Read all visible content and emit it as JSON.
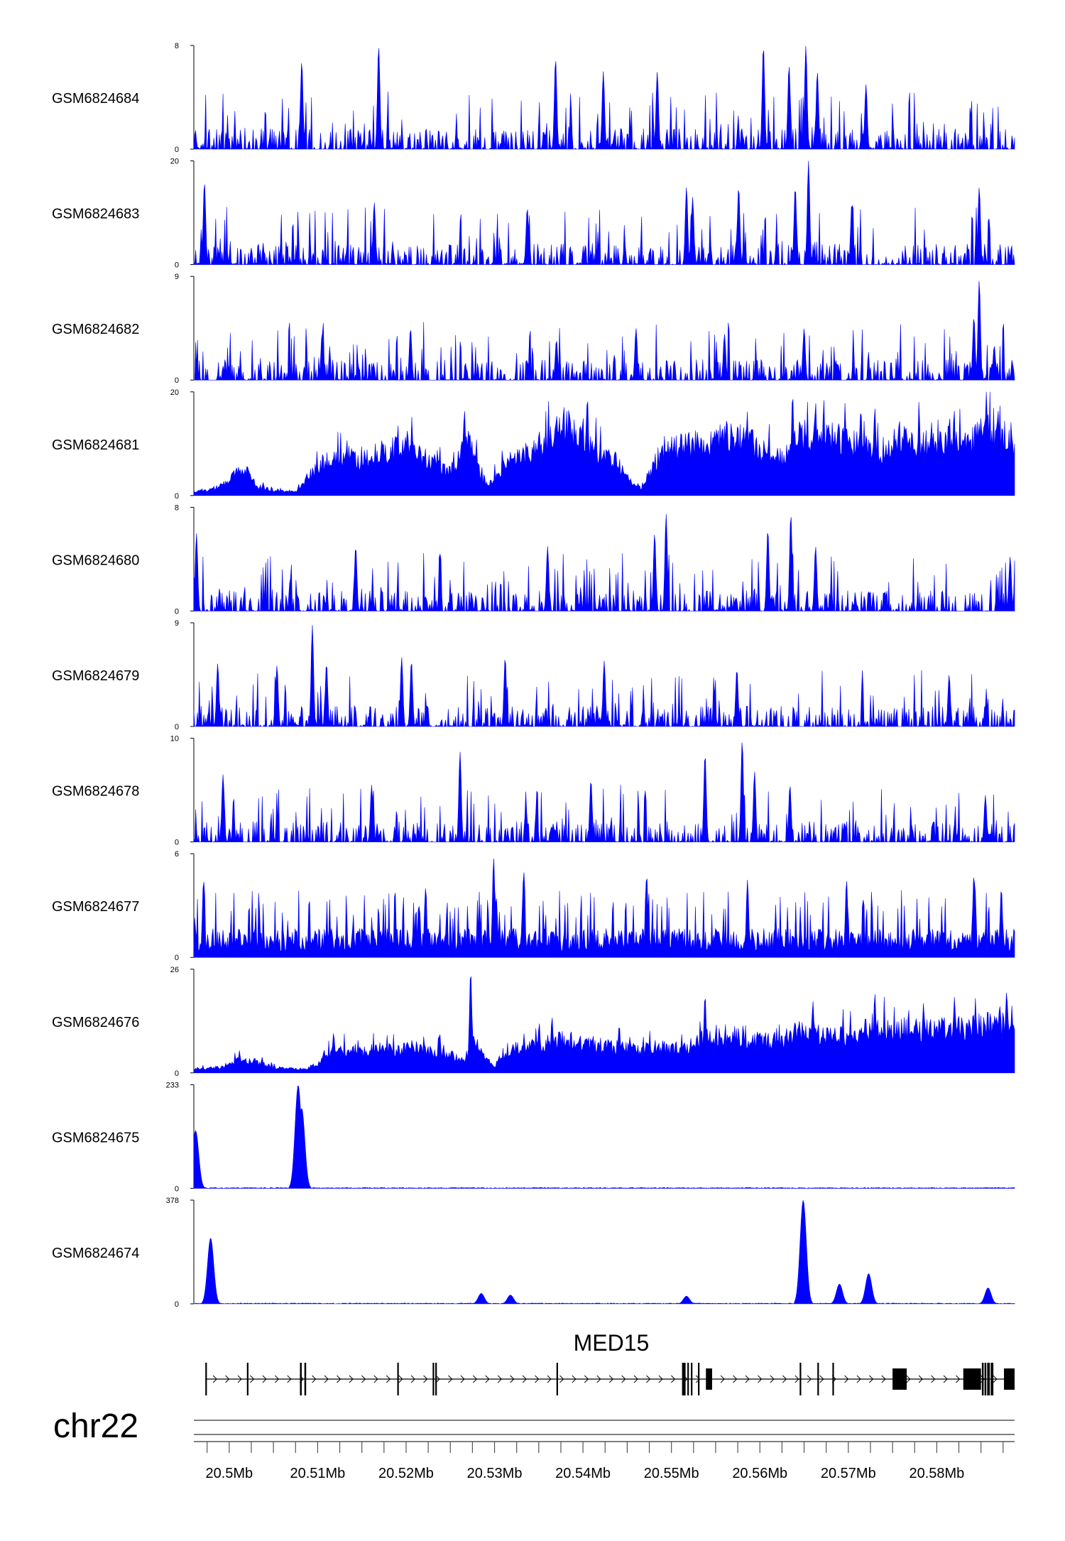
{
  "chart_data": {
    "type": "area",
    "chromosome": "chr22",
    "x_range_bp": [
      20496000,
      20588800
    ],
    "x_ticks_labeled": [
      {
        "pos": 20500000,
        "label": "20.5Mb"
      },
      {
        "pos": 20510000,
        "label": "20.51Mb"
      },
      {
        "pos": 20520000,
        "label": "20.52Mb"
      },
      {
        "pos": 20530000,
        "label": "20.53Mb"
      },
      {
        "pos": 20540000,
        "label": "20.54Mb"
      },
      {
        "pos": 20550000,
        "label": "20.55Mb"
      },
      {
        "pos": 20560000,
        "label": "20.56Mb"
      },
      {
        "pos": 20570000,
        "label": "20.57Mb"
      },
      {
        "pos": 20580000,
        "label": "20.58Mb"
      }
    ],
    "minor_tick_step_bp": 2500,
    "track_color": "#0000ff",
    "tracks": [
      {
        "name": "GSM6824684",
        "ymax": 8,
        "ymax_label": "8",
        "ymin_label": "0",
        "style": "spiky",
        "peaks": [
          [
            20508200,
            6.8
          ],
          [
            20516900,
            8.0
          ],
          [
            20536900,
            7.0
          ],
          [
            20542300,
            6.0
          ],
          [
            20548400,
            6.0
          ],
          [
            20560400,
            8.0
          ],
          [
            20563300,
            6.5
          ],
          [
            20565200,
            8.0
          ],
          [
            20566500,
            6.0
          ],
          [
            20572000,
            5.0
          ]
        ]
      },
      {
        "name": "GSM6824683",
        "ymax": 20,
        "ymax_label": "20",
        "ymin_label": "0",
        "style": "spiky",
        "peaks": [
          [
            20497200,
            16.0
          ],
          [
            20516400,
            12.0
          ],
          [
            20533700,
            11.0
          ],
          [
            20551700,
            15.0
          ],
          [
            20552400,
            13.0
          ],
          [
            20557600,
            15.0
          ],
          [
            20564000,
            15.0
          ],
          [
            20565500,
            20.0
          ],
          [
            20570400,
            12.0
          ],
          [
            20584800,
            15.0
          ]
        ]
      },
      {
        "name": "GSM6824682",
        "ymax": 9,
        "ymax_label": "9",
        "ymin_label": "0",
        "style": "spiky",
        "peaks": [
          [
            20510500,
            4.0
          ],
          [
            20520500,
            4.5
          ],
          [
            20537000,
            3.5
          ],
          [
            20546000,
            4.5
          ],
          [
            20556000,
            4.0
          ],
          [
            20565000,
            4.5
          ],
          [
            20584800,
            8.7
          ],
          [
            20584200,
            5.5
          ],
          [
            20586500,
            3.0
          ]
        ]
      },
      {
        "name": "GSM6824681",
        "ymax": 20,
        "ymax_label": "20",
        "ymin_label": "0",
        "style": "broad",
        "profile": [
          [
            20496000,
            0.8
          ],
          [
            20497500,
            1.0
          ],
          [
            20499000,
            2.0
          ],
          [
            20501000,
            4.5
          ],
          [
            20502000,
            6.5
          ],
          [
            20503000,
            2.0
          ],
          [
            20505000,
            1.0
          ],
          [
            20507500,
            0.8
          ],
          [
            20509000,
            4.0
          ],
          [
            20511000,
            7.0
          ],
          [
            20513500,
            8.0
          ],
          [
            20515000,
            7.0
          ],
          [
            20517000,
            9.0
          ],
          [
            20519500,
            10.0
          ],
          [
            20521000,
            9.0
          ],
          [
            20523500,
            6.5
          ],
          [
            20524500,
            5.0
          ],
          [
            20525500,
            6.0
          ],
          [
            20526800,
            13.0
          ],
          [
            20527800,
            8.0
          ],
          [
            20528500,
            3.5
          ],
          [
            20529500,
            2.5
          ],
          [
            20531000,
            6.0
          ],
          [
            20532500,
            8.0
          ],
          [
            20534500,
            9.5
          ],
          [
            20536000,
            12.0
          ],
          [
            20538000,
            14.0
          ],
          [
            20540000,
            13.0
          ],
          [
            20541500,
            9.0
          ],
          [
            20543500,
            8.0
          ],
          [
            20544500,
            5.0
          ],
          [
            20545500,
            3.0
          ],
          [
            20546500,
            1.5
          ],
          [
            20547500,
            5.0
          ],
          [
            20549000,
            9.0
          ],
          [
            20551000,
            10.0
          ],
          [
            20553000,
            11.0
          ],
          [
            20555000,
            12.0
          ],
          [
            20557000,
            12.0
          ],
          [
            20559000,
            11.0
          ],
          [
            20561000,
            9.0
          ],
          [
            20563000,
            7.5
          ],
          [
            20564000,
            12.0
          ],
          [
            20566000,
            13.0
          ],
          [
            20568000,
            12.5
          ],
          [
            20570000,
            11.0
          ],
          [
            20572000,
            10.5
          ],
          [
            20574000,
            9.5
          ],
          [
            20576000,
            12.5
          ],
          [
            20578000,
            11.0
          ],
          [
            20580000,
            10.0
          ],
          [
            20582000,
            12.0
          ],
          [
            20584000,
            11.0
          ],
          [
            20586000,
            14.0
          ],
          [
            20588800,
            11.0
          ]
        ],
        "peaks": [
          [
            20500500,
            5.0
          ],
          [
            20514000,
            9.0
          ],
          [
            20519000,
            11.0
          ],
          [
            20526600,
            16.5
          ],
          [
            20535000,
            11.0
          ],
          [
            20540500,
            19.0
          ],
          [
            20557500,
            14.0
          ],
          [
            20563700,
            19.5
          ],
          [
            20566300,
            18.0
          ],
          [
            20573000,
            17.0
          ],
          [
            20578000,
            16.0
          ],
          [
            20585000,
            15.0
          ]
        ]
      },
      {
        "name": "GSM6824680",
        "ymax": 8,
        "ymax_label": "8",
        "ymin_label": "0",
        "style": "spiky",
        "peaks": [
          [
            20496300,
            6.0
          ],
          [
            20514300,
            5.0
          ],
          [
            20536000,
            5.0
          ],
          [
            20548100,
            6.0
          ],
          [
            20549400,
            7.5
          ],
          [
            20560900,
            6.3
          ],
          [
            20563500,
            7.5
          ],
          [
            20566300,
            5.0
          ],
          [
            20588300,
            4.2
          ]
        ]
      },
      {
        "name": "GSM6824679",
        "ymax": 9,
        "ymax_label": "9",
        "ymin_label": "0",
        "style": "spiky",
        "peaks": [
          [
            20498700,
            5.5
          ],
          [
            20505400,
            5.3
          ],
          [
            20509400,
            8.8
          ],
          [
            20511000,
            5.5
          ],
          [
            20519500,
            6.0
          ],
          [
            20520600,
            5.7
          ],
          [
            20531200,
            6.0
          ],
          [
            20542400,
            5.7
          ],
          [
            20557400,
            5.0
          ],
          [
            20581400,
            4.5
          ]
        ]
      },
      {
        "name": "GSM6824678",
        "ymax": 10,
        "ymax_label": "10",
        "ymin_label": "0",
        "style": "spiky",
        "peaks": [
          [
            20499300,
            6.5
          ],
          [
            20516100,
            5.5
          ],
          [
            20526100,
            8.7
          ],
          [
            20540900,
            6.0
          ],
          [
            20553800,
            8.5
          ],
          [
            20558000,
            9.8
          ],
          [
            20559400,
            6.8
          ],
          [
            20563400,
            5.5
          ],
          [
            20585500,
            4.5
          ]
        ]
      },
      {
        "name": "GSM6824677",
        "ymax": 6,
        "ymax_label": "6",
        "ymin_label": "0",
        "style": "dense",
        "peaks": [
          [
            20497100,
            4.5
          ],
          [
            20522200,
            4.0
          ],
          [
            20529900,
            5.8
          ],
          [
            20530200,
            3.5
          ],
          [
            20533300,
            5.0
          ],
          [
            20547200,
            4.8
          ],
          [
            20558600,
            4.5
          ],
          [
            20569800,
            4.5
          ],
          [
            20584200,
            4.8
          ],
          [
            20587300,
            4.0
          ]
        ]
      },
      {
        "name": "GSM6824676",
        "ymax": 26,
        "ymax_label": "26",
        "ymin_label": "0",
        "style": "broad",
        "profile": [
          [
            20496000,
            1.0
          ],
          [
            20499000,
            1.5
          ],
          [
            20501000,
            3.5
          ],
          [
            20503000,
            3.0
          ],
          [
            20505000,
            1.5
          ],
          [
            20508500,
            1.0
          ],
          [
            20510000,
            2.5
          ],
          [
            20511000,
            5.0
          ],
          [
            20513000,
            6.0
          ],
          [
            20515000,
            5.5
          ],
          [
            20517000,
            6.5
          ],
          [
            20519000,
            6.0
          ],
          [
            20521000,
            7.0
          ],
          [
            20523000,
            5.5
          ],
          [
            20525000,
            5.0
          ],
          [
            20526500,
            3.0
          ],
          [
            20527500,
            9.0
          ],
          [
            20529000,
            4.0
          ],
          [
            20530000,
            2.0
          ],
          [
            20532000,
            6.5
          ],
          [
            20534000,
            7.0
          ],
          [
            20536000,
            8.0
          ],
          [
            20538000,
            9.0
          ],
          [
            20540000,
            8.0
          ],
          [
            20542000,
            7.5
          ],
          [
            20544000,
            7.0
          ],
          [
            20546000,
            6.5
          ],
          [
            20548000,
            7.0
          ],
          [
            20550000,
            6.5
          ],
          [
            20552000,
            7.0
          ],
          [
            20554000,
            10.0
          ],
          [
            20556000,
            10.5
          ],
          [
            20558000,
            9.5
          ],
          [
            20560000,
            9.0
          ],
          [
            20562000,
            8.0
          ],
          [
            20564000,
            11.0
          ],
          [
            20566000,
            10.5
          ],
          [
            20568000,
            10.0
          ],
          [
            20570000,
            10.0
          ],
          [
            20572000,
            11.5
          ],
          [
            20574000,
            12.0
          ],
          [
            20576000,
            12.0
          ],
          [
            20578000,
            11.5
          ],
          [
            20580000,
            12.0
          ],
          [
            20582000,
            12.0
          ],
          [
            20584000,
            12.5
          ],
          [
            20586000,
            13.0
          ],
          [
            20588800,
            12.5
          ]
        ],
        "peaks": [
          [
            20511800,
            10.0
          ],
          [
            20523800,
            10.0
          ],
          [
            20527300,
            25.5
          ],
          [
            20536500,
            14.0
          ],
          [
            20544100,
            12.0
          ],
          [
            20553800,
            19.5
          ],
          [
            20566000,
            18.0
          ],
          [
            20573000,
            20.0
          ],
          [
            20578500,
            17.5
          ],
          [
            20582000,
            19.0
          ],
          [
            20587900,
            20.5
          ]
        ]
      },
      {
        "name": "GSM6824675",
        "ymax": 233,
        "ymax_label": "233",
        "ymin_label": "0",
        "style": "flat",
        "peaks": [
          [
            20496200,
            130.0
          ],
          [
            20507800,
            232.0
          ],
          [
            20508200,
            180.0
          ]
        ],
        "baseline": 2.0
      },
      {
        "name": "GSM6824674",
        "ymax": 378,
        "ymax_label": "378",
        "ymin_label": "0",
        "style": "flat",
        "peaks": [
          [
            20497900,
            240.0
          ],
          [
            20528500,
            38.0
          ],
          [
            20531800,
            32.0
          ],
          [
            20551700,
            28.0
          ],
          [
            20564900,
            378.0
          ],
          [
            20569000,
            72.0
          ],
          [
            20572300,
            110.0
          ],
          [
            20585800,
            58.0
          ]
        ],
        "baseline": 3.0
      }
    ],
    "gene": {
      "name": "MED15",
      "strand": "+",
      "start": 20497300,
      "end": 20588800,
      "exons": [
        [
          20497300,
          20497400
        ],
        [
          20502000,
          20502100
        ],
        [
          20508000,
          20508200
        ],
        [
          20508500,
          20508700
        ],
        [
          20519000,
          20519100
        ],
        [
          20523000,
          20523100
        ],
        [
          20523300,
          20523400
        ],
        [
          20537000,
          20537100
        ],
        [
          20551200,
          20551600
        ],
        [
          20551800,
          20551900
        ],
        [
          20552200,
          20552300
        ],
        [
          20553000,
          20553100
        ],
        [
          20553900,
          20554600
        ],
        [
          20564500,
          20564650
        ],
        [
          20566500,
          20566650
        ],
        [
          20568200,
          20568350
        ],
        [
          20575000,
          20576600
        ],
        [
          20583000,
          20585000
        ],
        [
          20585100,
          20585300
        ],
        [
          20585400,
          20585600
        ],
        [
          20585700,
          20586000
        ],
        [
          20586100,
          20586400
        ],
        [
          20587600,
          20588800
        ]
      ]
    }
  }
}
